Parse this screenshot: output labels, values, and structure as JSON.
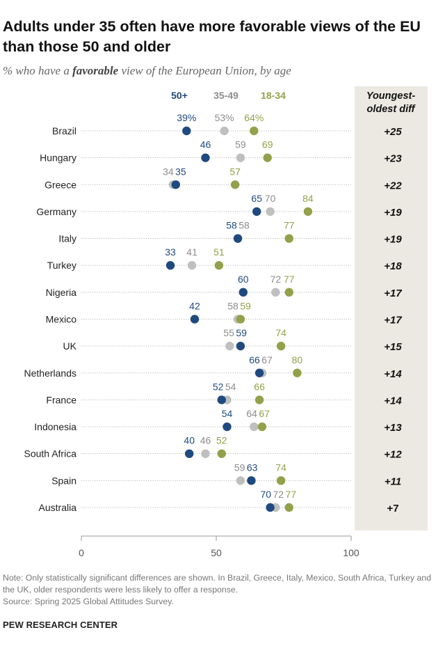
{
  "header": {
    "title": "Adults under 35 often have more favorable views of the EU than those 50 and older",
    "subtitle_pre": "% who have a ",
    "subtitle_bold": "favorable",
    "subtitle_post": " view of the European Union, by age"
  },
  "chart_data": {
    "type": "dot",
    "xlim": [
      0,
      100
    ],
    "xticks": [
      0,
      50,
      100
    ],
    "grid": false,
    "legend_placement": "top",
    "series": [
      {
        "name": "50+",
        "color": "#1f4a7f",
        "label_color": "#1f4a7f",
        "values": [
          39,
          46,
          35,
          65,
          58,
          33,
          60,
          42,
          59,
          66,
          52,
          54,
          40,
          63,
          70
        ]
      },
      {
        "name": "35-49",
        "color": "#bfbfbf",
        "label_color": "#8c8c8c",
        "values": [
          53,
          59,
          34,
          70,
          58,
          41,
          72,
          58,
          55,
          67,
          54,
          64,
          46,
          59,
          72
        ]
      },
      {
        "name": "18-34",
        "color": "#94a04a",
        "label_color": "#94a04a",
        "values": [
          64,
          69,
          57,
          84,
          77,
          51,
          77,
          59,
          74,
          80,
          66,
          67,
          52,
          74,
          77
        ]
      }
    ],
    "categories": [
      "Brazil",
      "Hungary",
      "Greece",
      "Germany",
      "Italy",
      "Turkey",
      "Nigeria",
      "Mexico",
      "UK",
      "Netherlands",
      "France",
      "Indonesia",
      "South Africa",
      "Spain",
      "Australia"
    ],
    "diff_header": [
      "Youngest-",
      "oldest diff"
    ],
    "diff": [
      "+25",
      "+23",
      "+22",
      "+19",
      "+19",
      "+18",
      "+17",
      "+17",
      "+15",
      "+14",
      "+14",
      "+13",
      "+12",
      "+11",
      "+7"
    ],
    "plain": [
      "+7"
    ],
    "first_row_suffix": "%"
  },
  "colors": {
    "diff_panel": "#ece9e2",
    "dotline": "#b5b5b5"
  },
  "footer": {
    "note": "Note: Only statistically significant differences are shown. In Brazil, Greece, Italy, Mexico, South Africa, Turkey and the UK, older respondents were less likely to offer a response.",
    "source": "Source: Spring 2025 Global Attitudes Survey.",
    "brand": "PEW RESEARCH CENTER"
  }
}
